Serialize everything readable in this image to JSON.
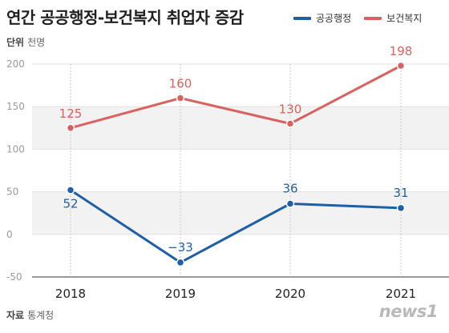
{
  "header": {
    "title": "연간 공공행정-보건복지 취업자 증감",
    "unit_label": "단위",
    "unit_value": "천명"
  },
  "footer": {
    "source_label": "자료",
    "source_value": "통계청",
    "logo_text": "news1"
  },
  "colors": {
    "public_admin": "#1f5fa6",
    "health_welfare": "#d9625f",
    "band": "#f2f2f2"
  },
  "chart_data": {
    "type": "line",
    "x": [
      "2018",
      "2019",
      "2020",
      "2021"
    ],
    "series": [
      {
        "name": "공공행정",
        "values": [
          52,
          -33,
          36,
          31
        ],
        "color": "#1f5fa6",
        "labels": [
          "52",
          "−33",
          "36",
          "31"
        ]
      },
      {
        "name": "보건복지",
        "values": [
          125,
          160,
          130,
          198
        ],
        "color": "#d9625f",
        "labels": [
          "125",
          "160",
          "130",
          "198"
        ]
      }
    ],
    "ylim": [
      -50,
      200
    ],
    "yticks": [
      "-50",
      "0",
      "50",
      "100",
      "150",
      "200"
    ],
    "legend_position": "top-right",
    "grid": true
  }
}
